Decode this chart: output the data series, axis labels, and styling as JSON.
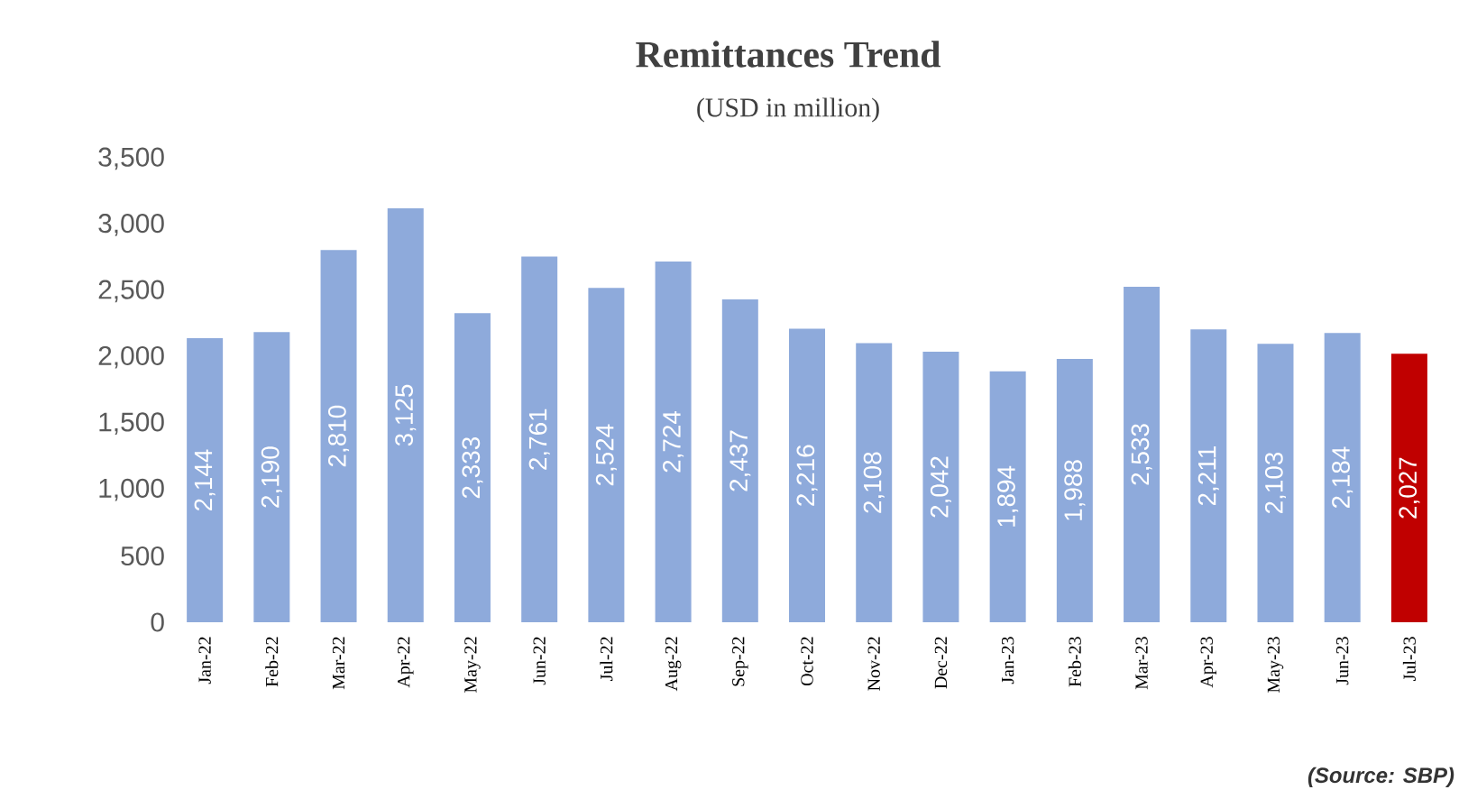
{
  "chart_data": {
    "type": "bar",
    "title": "Remittances Trend",
    "subtitle": "(USD in million)",
    "categories": [
      "Jan-22",
      "Feb-22",
      "Mar-22",
      "Apr-22",
      "May-22",
      "Jun-22",
      "Jul-22",
      "Aug-22",
      "Sep-22",
      "Oct-22",
      "Nov-22",
      "Dec-22",
      "Jan-23",
      "Feb-23",
      "Mar-23",
      "Apr-23",
      "May-23",
      "Jun-23",
      "Jul-23"
    ],
    "values": [
      2144,
      2190,
      2810,
      3125,
      2333,
      2761,
      2524,
      2724,
      2437,
      2216,
      2108,
      2042,
      1894,
      1988,
      2533,
      2211,
      2103,
      2184,
      2027
    ],
    "value_labels": [
      "2,144",
      "2,190",
      "2,810",
      "3,125",
      "2,333",
      "2,761",
      "2,524",
      "2,724",
      "2,437",
      "2,216",
      "2,108",
      "2,042",
      "1,894",
      "1,988",
      "2,533",
      "2,211",
      "2,103",
      "2,184",
      "2,027"
    ],
    "colors": [
      "#8eaadb",
      "#8eaadb",
      "#8eaadb",
      "#8eaadb",
      "#8eaadb",
      "#8eaadb",
      "#8eaadb",
      "#8eaadb",
      "#8eaadb",
      "#8eaadb",
      "#8eaadb",
      "#8eaadb",
      "#8eaadb",
      "#8eaadb",
      "#8eaadb",
      "#8eaadb",
      "#8eaadb",
      "#8eaadb",
      "#c00000"
    ],
    "ylim": [
      0,
      3500
    ],
    "yticks": [
      0,
      500,
      {
        "value": 1000,
        "label": "1,000"
      },
      {
        "value": 1500,
        "label": "1,500"
      },
      {
        "value": 2000,
        "label": "2,000"
      },
      {
        "value": 2500,
        "label": "2,500"
      },
      {
        "value": 3000,
        "label": "3,000"
      },
      {
        "value": 3500,
        "label": "3,500"
      }
    ],
    "annotations": [
      "(Source: SBP)"
    ]
  }
}
